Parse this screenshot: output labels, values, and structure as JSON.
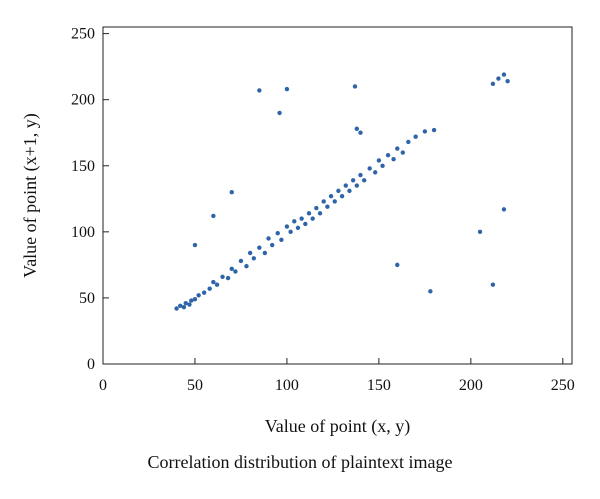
{
  "caption": "Correlation distribution of plaintext image",
  "chart_data": {
    "type": "scatter",
    "xlabel": "Value of point (x, y)",
    "ylabel": "Value of point (x+1, y)",
    "xlim": [
      0,
      255
    ],
    "ylim": [
      0,
      255
    ],
    "xticks": [
      "0",
      "50",
      "100",
      "150",
      "200",
      "250"
    ],
    "yticks": [
      "0",
      "50",
      "100",
      "150",
      "200",
      "250"
    ],
    "grid": false,
    "legend": "none",
    "marker_color": "#2f64a8",
    "points": [
      [
        40,
        42
      ],
      [
        42,
        44
      ],
      [
        44,
        43
      ],
      [
        45,
        46
      ],
      [
        47,
        45
      ],
      [
        48,
        48
      ],
      [
        50,
        49
      ],
      [
        52,
        52
      ],
      [
        55,
        54
      ],
      [
        58,
        57
      ],
      [
        60,
        62
      ],
      [
        62,
        60
      ],
      [
        65,
        66
      ],
      [
        68,
        65
      ],
      [
        70,
        72
      ],
      [
        72,
        70
      ],
      [
        75,
        78
      ],
      [
        78,
        74
      ],
      [
        80,
        84
      ],
      [
        82,
        80
      ],
      [
        85,
        88
      ],
      [
        88,
        84
      ],
      [
        90,
        95
      ],
      [
        92,
        90
      ],
      [
        95,
        99
      ],
      [
        97,
        94
      ],
      [
        100,
        104
      ],
      [
        102,
        100
      ],
      [
        104,
        108
      ],
      [
        106,
        103
      ],
      [
        108,
        110
      ],
      [
        110,
        106
      ],
      [
        112,
        114
      ],
      [
        114,
        110
      ],
      [
        116,
        118
      ],
      [
        118,
        114
      ],
      [
        120,
        123
      ],
      [
        122,
        119
      ],
      [
        124,
        127
      ],
      [
        126,
        123
      ],
      [
        128,
        131
      ],
      [
        130,
        127
      ],
      [
        132,
        135
      ],
      [
        134,
        131
      ],
      [
        136,
        139
      ],
      [
        138,
        135
      ],
      [
        140,
        143
      ],
      [
        142,
        139
      ],
      [
        145,
        148
      ],
      [
        148,
        145
      ],
      [
        150,
        154
      ],
      [
        152,
        150
      ],
      [
        155,
        158
      ],
      [
        158,
        155
      ],
      [
        160,
        163
      ],
      [
        163,
        160
      ],
      [
        166,
        168
      ],
      [
        170,
        172
      ],
      [
        175,
        176
      ],
      [
        180,
        177
      ],
      [
        212,
        212
      ],
      [
        215,
        216
      ],
      [
        218,
        219
      ],
      [
        220,
        214
      ],
      [
        85,
        207
      ],
      [
        100,
        208
      ],
      [
        138,
        178
      ],
      [
        137,
        210
      ],
      [
        178,
        55
      ],
      [
        212,
        60
      ],
      [
        218,
        117
      ],
      [
        160,
        75
      ],
      [
        205,
        100
      ],
      [
        60,
        112
      ],
      [
        50,
        90
      ],
      [
        70,
        130
      ],
      [
        96,
        190
      ],
      [
        140,
        175
      ]
    ]
  }
}
